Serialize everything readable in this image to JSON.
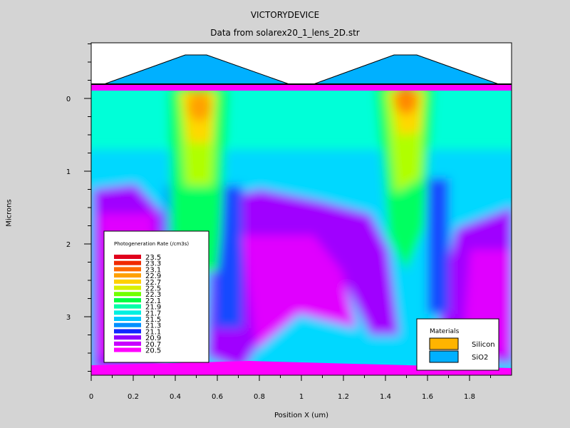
{
  "title": "VICTORYDEVICE",
  "subtitle": "Data from solarex20_1_lens_2D.str",
  "chart_data": {
    "type": "heatmap",
    "xlabel": "Position X (um)",
    "ylabel": "Microns",
    "xlim": [
      0,
      2
    ],
    "ylim": [
      -0.8,
      3.8
    ],
    "x_ticks": [
      "0",
      "0.2",
      "0.4",
      "0.6",
      "0.8",
      "1",
      "1.2",
      "1.4",
      "1.6",
      "1.8"
    ],
    "y_ticks": [
      "0",
      "1",
      "2",
      "3"
    ],
    "colorbar": {
      "title": "Photogeneration Rate (/cm3s)",
      "levels": [
        "23.5",
        "23.3",
        "23.1",
        "22.9",
        "22.7",
        "22.5",
        "22.3",
        "22.1",
        "21.9",
        "21.7",
        "21.5",
        "21.3",
        "21.1",
        "20.9",
        "20.7",
        "20.5"
      ],
      "colors": [
        "#e0001c",
        "#f02a00",
        "#ff6a00",
        "#ffa000",
        "#ffd000",
        "#d8f000",
        "#70ff00",
        "#00ff40",
        "#00ffa8",
        "#00f0e0",
        "#00c8ff",
        "#0090ff",
        "#1028ff",
        "#9000ff",
        "#c800ff",
        "#ff00ff"
      ]
    },
    "materials": [
      {
        "name": "Silicon",
        "color": "#ffb400"
      },
      {
        "name": "SiO2",
        "color": "#00b0ff"
      }
    ]
  }
}
